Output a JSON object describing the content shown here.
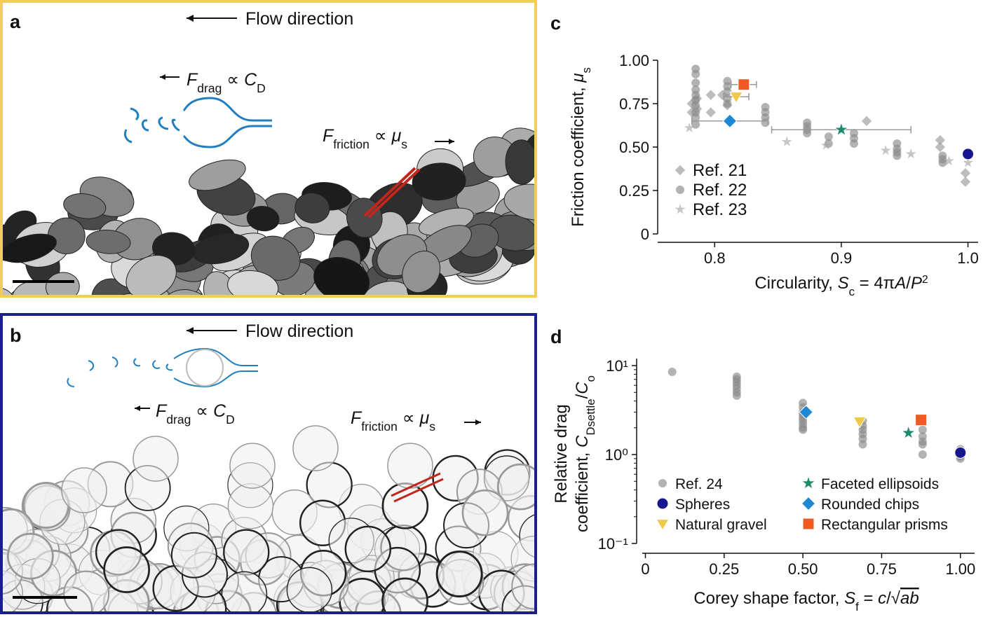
{
  "panels": {
    "a": {
      "letter": "a",
      "flow": "Flow direction",
      "drag": [
        "F",
        "drag",
        " ∝ ",
        "C",
        "D"
      ],
      "friction": [
        "F",
        "friction",
        " ∝ ",
        "μ",
        "s"
      ]
    },
    "b": {
      "letter": "b",
      "flow": "Flow direction",
      "drag": [
        "F",
        "drag",
        " ∝ ",
        "C",
        "D"
      ],
      "friction": [
        "F",
        "friction",
        " ∝ ",
        "μ",
        "s"
      ]
    }
  },
  "chart_data": [
    {
      "type": "scatter",
      "panel": "c",
      "xlabel": [
        "Circularity, ",
        "S",
        "c",
        " = 4π",
        "A",
        "/",
        "P",
        "2"
      ],
      "ylabel": [
        "Friction coefficient, ",
        "μ",
        "s"
      ],
      "xlim": [
        0.755,
        1.008
      ],
      "xticks": [
        0.8,
        0.9,
        {
          "value": 1,
          "label": "1.0"
        }
      ],
      "ylim": [
        0,
        1
      ],
      "yticks": [
        0,
        0.25,
        {
          "value": 0.5,
          "label": "0.50"
        },
        0.75,
        {
          "value": 1,
          "label": "1.00"
        }
      ],
      "log_y": false,
      "legend": "lower left",
      "legend_columns": 1,
      "series": [
        {
          "name": "Ref. 21",
          "color": "#9a9a9a",
          "marker": "diamond",
          "x": [
            0.782,
            0.782,
            0.786,
            0.786,
            0.797,
            0.797,
            0.806,
            0.81,
            0.92,
            0.978,
            0.978,
            0.998,
            0.998
          ],
          "values": [
            0.75,
            0.7,
            0.78,
            0.72,
            0.8,
            0.7,
            0.8,
            0.74,
            0.65,
            0.54,
            0.5,
            0.35,
            0.3
          ]
        },
        {
          "name": "Ref. 22",
          "color": "#8a8a8a",
          "marker": "circle",
          "x": [
            0.785,
            0.785,
            0.785,
            0.785,
            0.785,
            0.785,
            0.785,
            0.785,
            0.785,
            0.785,
            0.81,
            0.81,
            0.81,
            0.81,
            0.81,
            0.84,
            0.84,
            0.84,
            0.84,
            0.873,
            0.873,
            0.873,
            0.873,
            0.89,
            0.89,
            0.91,
            0.91,
            0.91,
            0.944,
            0.944,
            0.944,
            0.944,
            0.98,
            0.98,
            0.98
          ],
          "values": [
            0.95,
            0.92,
            0.87,
            0.83,
            0.8,
            0.77,
            0.74,
            0.7,
            0.67,
            0.63,
            0.88,
            0.85,
            0.82,
            0.78,
            0.75,
            0.73,
            0.7,
            0.67,
            0.64,
            0.64,
            0.62,
            0.6,
            0.58,
            0.56,
            0.52,
            0.58,
            0.55,
            0.52,
            0.52,
            0.49,
            0.47,
            0.45,
            0.45,
            0.43,
            0.41
          ]
        },
        {
          "name": "Ref. 23",
          "color": "#a8a8a8",
          "marker": "star",
          "x": [
            0.78,
            0.857,
            0.888,
            0.935,
            0.955,
            0.985,
            1.0
          ],
          "values": [
            0.61,
            0.53,
            0.51,
            0.48,
            0.46,
            0.42,
            0.41
          ]
        },
        {
          "color": "#f0c84a",
          "marker": "triangle",
          "x": [
            0.817
          ],
          "values": [
            0.79
          ],
          "x_err": [
            0.01
          ]
        },
        {
          "color": "#f05a22",
          "marker": "square",
          "x": [
            0.823
          ],
          "values": [
            0.86
          ],
          "x_err": [
            0.01
          ]
        },
        {
          "color": "#1e88d4",
          "marker": "diamond",
          "x": [
            0.812
          ],
          "values": [
            0.65
          ],
          "x_err": [
            0.03
          ]
        },
        {
          "color": "#1e8a6e",
          "marker": "star",
          "x": [
            0.9
          ],
          "values": [
            0.6
          ],
          "x_err": [
            0.055
          ]
        },
        {
          "color": "#16168f",
          "marker": "circle",
          "x": [
            1.0
          ],
          "values": [
            0.46
          ]
        }
      ]
    },
    {
      "type": "scatter",
      "panel": "d",
      "xlabel": [
        "Corey shape factor, ",
        "S",
        "f",
        " = ",
        "c",
        "/√",
        "ab"
      ],
      "ylabel": [
        "Relative drag",
        "coefficient, ",
        "C",
        "Dsettle",
        "/",
        "C",
        "o"
      ],
      "xlim": [
        -0.01,
        1.045
      ],
      "xticks": [
        0,
        0.25,
        {
          "value": 0.5,
          "label": "0.50"
        },
        0.75,
        {
          "value": 1,
          "label": "1.00"
        }
      ],
      "ylim": [
        0.1,
        12
      ],
      "yticks": [
        {
          "value": 0.1,
          "label": "10⁻¹"
        },
        {
          "value": 1,
          "label": "10⁰"
        },
        {
          "value": 10,
          "label": "10¹"
        }
      ],
      "log_y": true,
      "legend": "lower left",
      "legend_columns": 2,
      "series": [
        {
          "name": "Ref. 24",
          "color": "#8a8a8a",
          "marker": "circle",
          "x": [
            0.085,
            0.29,
            0.29,
            0.29,
            0.29,
            0.29,
            0.29,
            0.29,
            0.5,
            0.5,
            0.5,
            0.5,
            0.5,
            0.5,
            0.5,
            0.5,
            0.5,
            0.69,
            0.69,
            0.69,
            0.69,
            0.69,
            0.69,
            0.88,
            0.88,
            0.88,
            0.88,
            0.88,
            1.0,
            1.0,
            1.0,
            1.0,
            1.0
          ],
          "values": [
            8.5,
            7.5,
            7,
            6.5,
            6,
            5.5,
            5,
            4.6,
            3.8,
            3.4,
            3,
            2.8,
            2.6,
            2.4,
            2.2,
            2,
            1.9,
            2.4,
            2.1,
            1.9,
            1.7,
            1.5,
            1.3,
            1.9,
            1.6,
            1.4,
            1.3,
            1,
            1.15,
            1.05,
            1,
            0.95,
            0.9
          ]
        },
        {
          "name": "Spheres",
          "color": "#16168f",
          "marker": "circle",
          "x": [
            1.0
          ],
          "values": [
            1.05
          ]
        },
        {
          "name": "Natural gravel",
          "color": "#f0c84a",
          "marker": "triangle",
          "x": [
            0.68
          ],
          "values": [
            2.35
          ]
        },
        {
          "name": "Faceted ellipsoids",
          "color": "#1e8a6e",
          "marker": "star",
          "x": [
            0.835
          ],
          "values": [
            1.75
          ]
        },
        {
          "name": "Rounded chips",
          "color": "#1e88d4",
          "marker": "diamond",
          "x": [
            0.51
          ],
          "values": [
            3
          ]
        },
        {
          "name": "Rectangular prisms",
          "color": "#f05a22",
          "marker": "square",
          "x": [
            0.875
          ],
          "values": [
            2.45
          ]
        }
      ]
    }
  ]
}
